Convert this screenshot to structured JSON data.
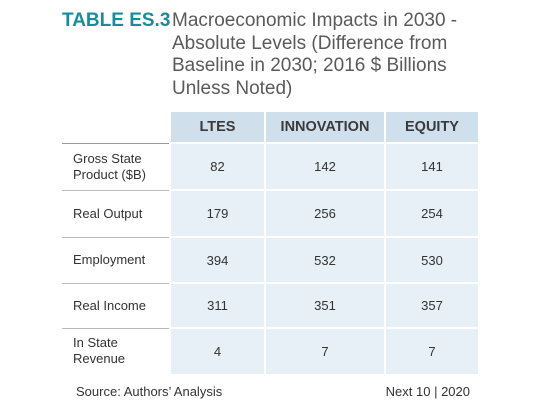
{
  "header": {
    "label": "TABLE ES.3",
    "title_lines": [
      "Macroeconomic Impacts in 2030 -",
      "Absolute Levels (Difference from",
      "Baseline in 2030; 2016 $ Billions",
      "Unless Noted)"
    ]
  },
  "table": {
    "columns": [
      "LTES",
      "INNOVATION",
      "EQUITY"
    ],
    "rows": [
      {
        "label": "Gross State Product ($B)",
        "values": [
          "82",
          "142",
          "141"
        ]
      },
      {
        "label": "Real Output",
        "values": [
          "179",
          "256",
          "254"
        ]
      },
      {
        "label": "Employment",
        "values": [
          "394",
          "532",
          "530"
        ]
      },
      {
        "label": "Real Income",
        "values": [
          "311",
          "351",
          "357"
        ]
      },
      {
        "label": "In State Revenue",
        "values": [
          "4",
          "7",
          "7"
        ]
      }
    ]
  },
  "footer": {
    "source": "Source: Authors’ Analysis",
    "credit": "Next 10 | 2020"
  }
}
